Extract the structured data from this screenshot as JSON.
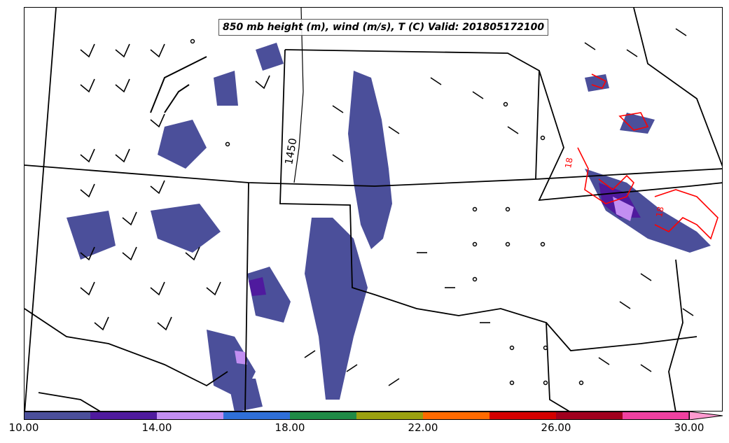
{
  "title": "850 mb height (m), wind (m/s), T (C) Valid: 201805172100",
  "contour_label_height": "1450",
  "contour_label_temp_a": "18",
  "contour_label_temp_b": "18",
  "colorbar": {
    "ticks": [
      "10.00",
      "14.00",
      "18.00",
      "22.00",
      "26.00",
      "30.00"
    ],
    "bin_colors": [
      "#4b4f9a",
      "#4f1a9e",
      "#c28ef2",
      "#2f6fd8",
      "#1f8a46",
      "#9aa010",
      "#ff6a00",
      "#d40000",
      "#a0001e",
      "#f040a0",
      "#ff9ad0"
    ]
  },
  "colors": {
    "humidity_fill": "#4b4f9a",
    "temp_contour": "#ff0000",
    "borders": "#000000"
  }
}
